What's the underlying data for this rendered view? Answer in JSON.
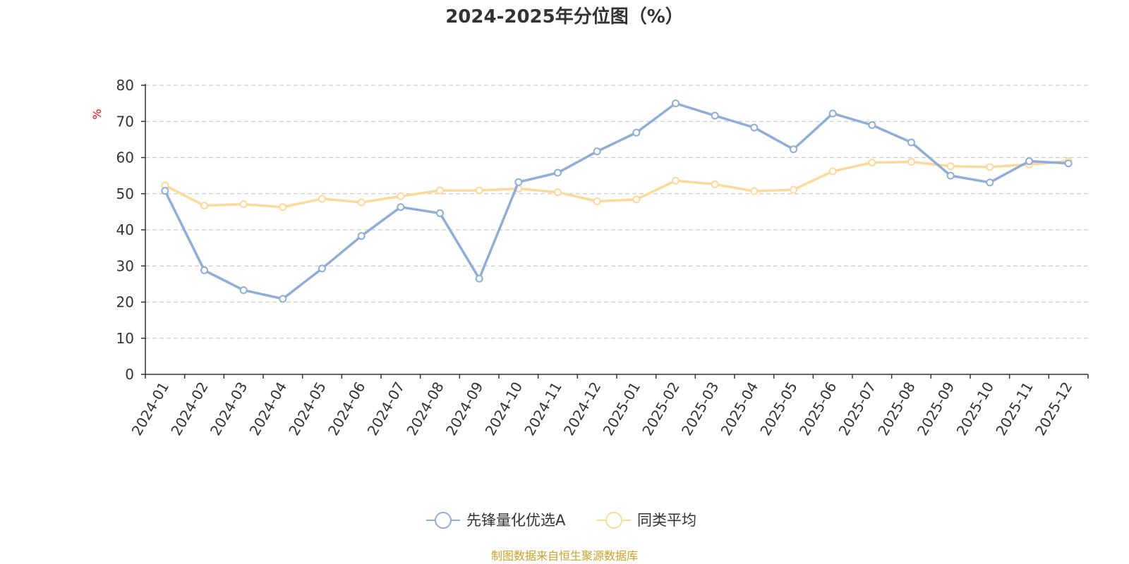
{
  "chart_data": {
    "type": "line",
    "title": "2024-2025年分位图（%）",
    "y_unit": "%",
    "ylim": [
      0,
      80
    ],
    "y_ticks": [
      "0",
      "10",
      "20",
      "30",
      "40",
      "50",
      "60",
      "70",
      "80"
    ],
    "grid": "horizontal dashed",
    "legend_position": "bottom",
    "categories": [
      "2024-01",
      "2024-02",
      "2024-03",
      "2024-04",
      "2024-05",
      "2024-06",
      "2024-07",
      "2024-08",
      "2024-09",
      "2024-10",
      "2024-11",
      "2024-12",
      "2025-01",
      "2025-02",
      "2025-03",
      "2025-04",
      "2025-05",
      "2025-06",
      "2025-07",
      "2025-08",
      "2025-09",
      "2025-10",
      "2025-11",
      "2025-12"
    ],
    "series": [
      {
        "name": "先锋量化优选A",
        "color": "#8fadd9",
        "values": [
          50.8,
          28.8,
          23.3,
          20.9,
          29.3,
          38.3,
          46.3,
          44.6,
          26.5,
          53.2,
          55.8,
          61.7,
          66.9,
          75.0,
          71.6,
          68.3,
          62.3,
          72.2,
          69.0,
          64.2,
          55.0,
          53.1,
          59.0,
          58.4
        ]
      },
      {
        "name": "同类平均",
        "color": "#fcd998",
        "values": [
          52.3,
          46.7,
          47.1,
          46.3,
          48.6,
          47.6,
          49.3,
          50.9,
          50.9,
          51.4,
          50.4,
          47.9,
          48.4,
          53.6,
          52.6,
          50.7,
          51.1,
          56.2,
          58.6,
          58.8,
          57.6,
          57.4,
          58.1,
          59.0
        ]
      }
    ]
  },
  "source_note": "制图数据来自恒生聚源数据库"
}
